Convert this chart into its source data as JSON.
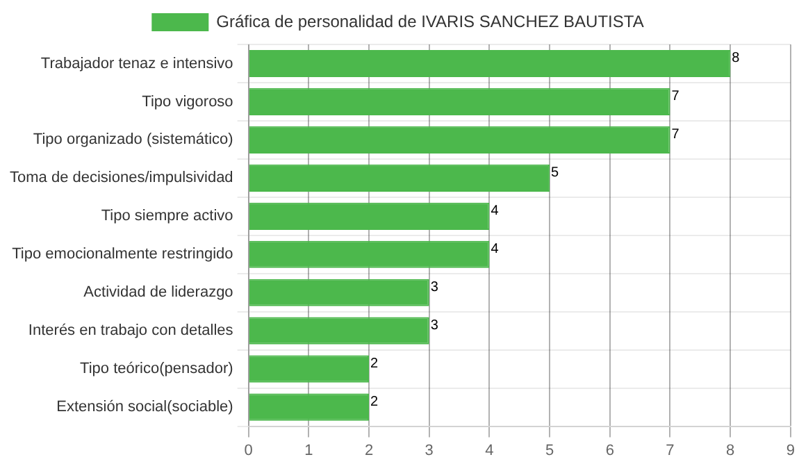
{
  "chart_data": {
    "type": "bar",
    "orientation": "horizontal",
    "categories": [
      "Trabajador tenaz e intensivo",
      "Tipo vigoroso",
      "Tipo organizado (sistemático)",
      "Toma de decisiones/impulsividad",
      "Tipo siempre activo",
      "Tipo emocionalmente restringido",
      "Actividad de liderazgo",
      "Interés en trabajo con detalles",
      "Tipo teórico(pensador)",
      "Extensión social(sociable)"
    ],
    "series": [
      {
        "name": "Gráfica de personalidad de IVARIS SANCHEZ BAUTISTA",
        "color": "#4cb84c",
        "values": [
          8,
          7,
          7,
          5,
          4,
          4,
          3,
          3,
          2,
          2
        ]
      }
    ],
    "xlim": [
      0,
      9
    ],
    "xticks": [
      0,
      1,
      2,
      3,
      4,
      5,
      6,
      7,
      8,
      9
    ],
    "grid": true,
    "legend": "top",
    "data_labels": true
  }
}
